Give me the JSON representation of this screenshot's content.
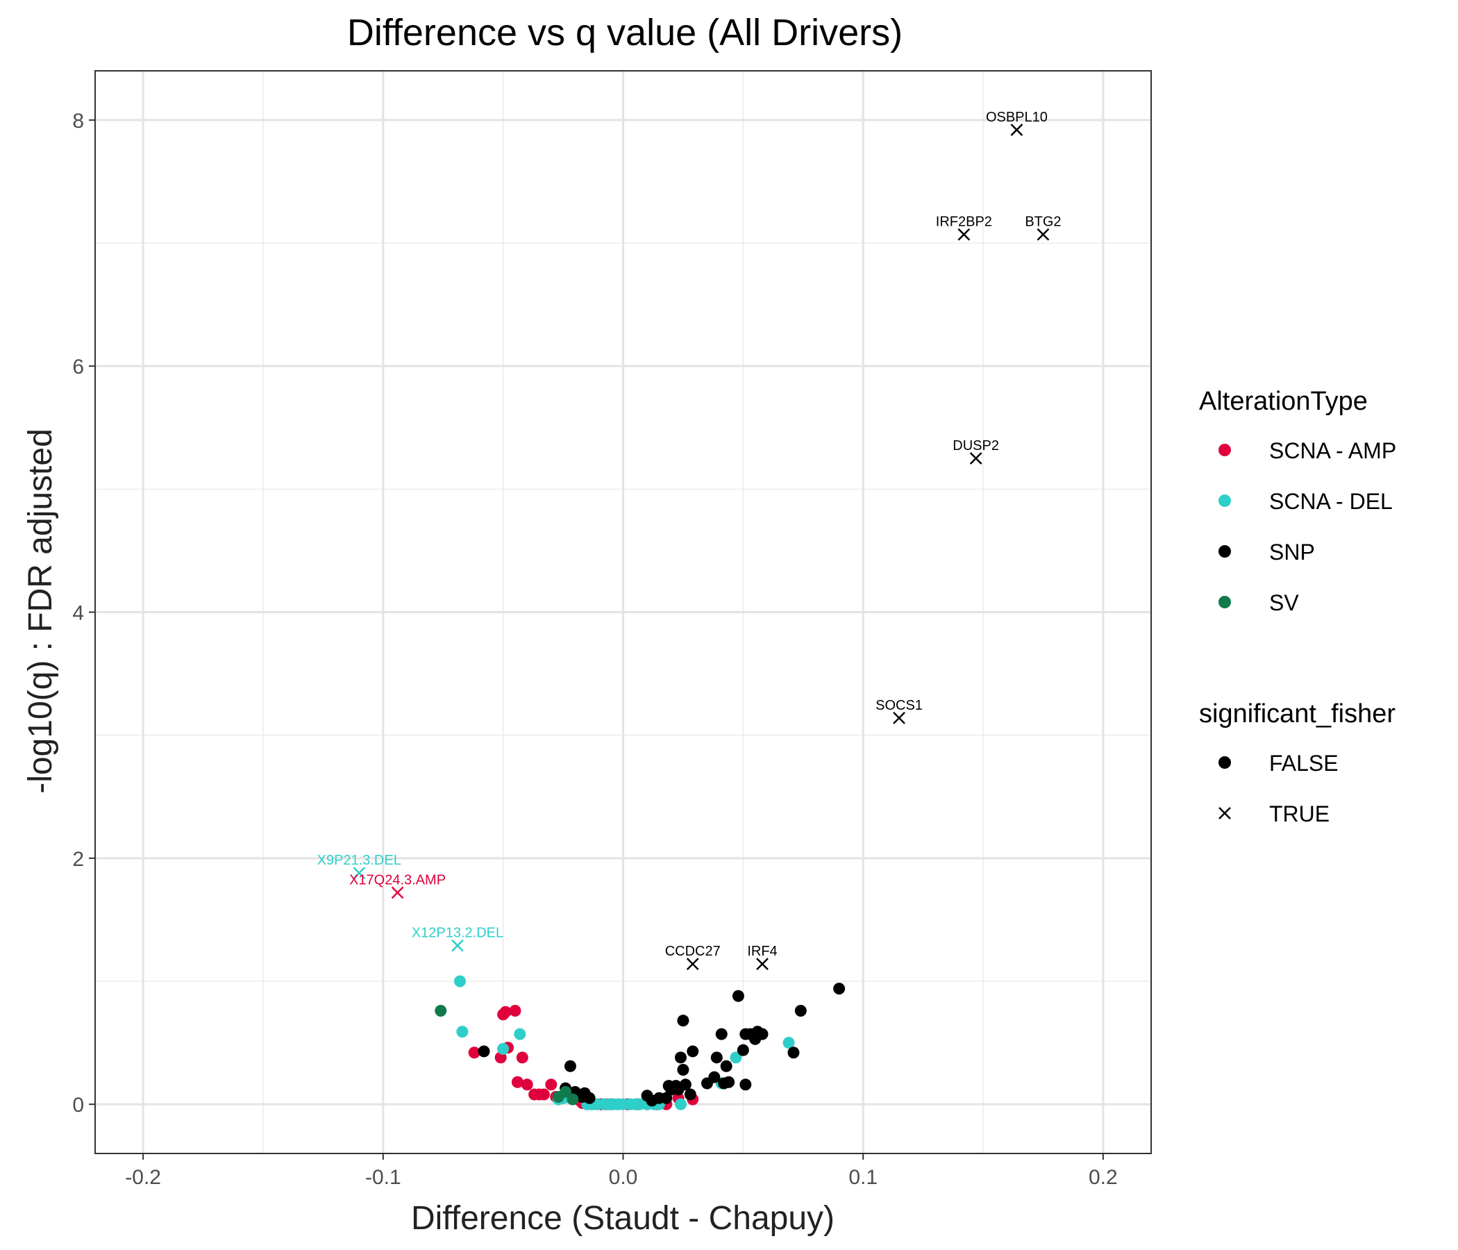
{
  "chart_data": {
    "type": "scatter",
    "title": "Difference vs q value (All Drivers)",
    "xlabel": "Difference (Staudt - Chapuy)",
    "ylabel": "-log10(q) : FDR adjusted",
    "xlim": [
      -0.22,
      0.22
    ],
    "ylim": [
      -0.4,
      8.4
    ],
    "x_ticks": [
      -0.2,
      -0.1,
      0.0,
      0.1,
      0.2
    ],
    "x_tick_labels": [
      "-0.2",
      "-0.1",
      "0.0",
      "0.1",
      "0.2"
    ],
    "y_ticks": [
      0,
      2,
      4,
      6,
      8
    ],
    "y_tick_labels": [
      "0",
      "2",
      "4",
      "6",
      "8"
    ],
    "grid": true,
    "legend_placement": "right",
    "colors": {
      "SCNA - AMP": "#e0003c",
      "SCNA - DEL": "#2ecfc9",
      "SNP": "#000000",
      "SV": "#117a4c"
    },
    "legend": {
      "color_title": "AlterationType",
      "color_entries": [
        "SCNA - AMP",
        "SCNA - DEL",
        "SNP",
        "SV"
      ],
      "shape_title": "significant_fisher",
      "shape_entries": [
        "FALSE",
        "TRUE"
      ]
    },
    "labeled_points": [
      {
        "label": "OSBPL10",
        "x": 0.164,
        "y": 7.92,
        "type": "SNP"
      },
      {
        "label": "IRF2BP2",
        "x": 0.142,
        "y": 7.07,
        "type": "SNP"
      },
      {
        "label": "BTG2",
        "x": 0.175,
        "y": 7.07,
        "type": "SNP"
      },
      {
        "label": "DUSP2",
        "x": 0.147,
        "y": 5.25,
        "type": "SNP"
      },
      {
        "label": "SOCS1",
        "x": 0.115,
        "y": 3.14,
        "type": "SNP"
      },
      {
        "label": "CCDC27",
        "x": 0.029,
        "y": 1.14,
        "type": "SNP"
      },
      {
        "label": "IRF4",
        "x": 0.058,
        "y": 1.14,
        "type": "SNP"
      },
      {
        "label": "X9P21.3.DEL",
        "x": -0.11,
        "y": 1.88,
        "type": "SCNA - DEL"
      },
      {
        "label": "X17Q24.3.AMP",
        "x": -0.094,
        "y": 1.72,
        "type": "SCNA - AMP"
      },
      {
        "label": "X12P13.2.DEL",
        "x": -0.069,
        "y": 1.29,
        "type": "SCNA - DEL"
      }
    ],
    "series": [
      {
        "name": "SCNA - AMP",
        "points": [
          [
            -0.062,
            0.42
          ],
          [
            -0.051,
            0.38
          ],
          [
            -0.05,
            0.73
          ],
          [
            -0.049,
            0.75
          ],
          [
            -0.048,
            0.46
          ],
          [
            -0.045,
            0.76
          ],
          [
            -0.044,
            0.18
          ],
          [
            -0.042,
            0.38
          ],
          [
            -0.04,
            0.16
          ],
          [
            -0.037,
            0.08
          ],
          [
            -0.035,
            0.08
          ],
          [
            -0.033,
            0.08
          ],
          [
            -0.03,
            0.16
          ],
          [
            -0.028,
            0.06
          ],
          [
            -0.025,
            0.05
          ],
          [
            -0.018,
            0.03
          ],
          [
            -0.017,
            0.01
          ],
          [
            -0.015,
            0.0
          ],
          [
            -0.013,
            0.0
          ],
          [
            -0.011,
            0.0
          ],
          [
            -0.009,
            0.0
          ],
          [
            -0.007,
            0.0
          ],
          [
            -0.005,
            0.0
          ],
          [
            -0.002,
            0.0
          ],
          [
            0.002,
            0.0
          ],
          [
            0.006,
            0.0
          ],
          [
            0.01,
            0.0
          ],
          [
            0.014,
            0.0
          ],
          [
            0.018,
            0.0
          ],
          [
            0.023,
            0.05
          ],
          [
            0.029,
            0.04
          ]
        ]
      },
      {
        "name": "SCNA - DEL",
        "points": [
          [
            -0.068,
            1.0
          ],
          [
            -0.067,
            0.59
          ],
          [
            -0.05,
            0.45
          ],
          [
            -0.043,
            0.57
          ],
          [
            -0.027,
            0.04
          ],
          [
            -0.025,
            0.05
          ],
          [
            -0.022,
            0.05
          ],
          [
            -0.021,
            0.07
          ],
          [
            -0.015,
            0.0
          ],
          [
            -0.013,
            0.0
          ],
          [
            -0.011,
            0.0
          ],
          [
            -0.008,
            0.0
          ],
          [
            -0.006,
            0.0
          ],
          [
            -0.004,
            0.0
          ],
          [
            -0.002,
            0.0
          ],
          [
            0.0,
            0.0
          ],
          [
            0.003,
            0.0
          ],
          [
            0.005,
            0.0
          ],
          [
            0.007,
            0.0
          ],
          [
            0.01,
            0.0
          ],
          [
            0.013,
            0.0
          ],
          [
            0.015,
            0.0
          ],
          [
            0.024,
            0.0
          ],
          [
            0.041,
            0.17
          ],
          [
            0.047,
            0.38
          ],
          [
            0.069,
            0.5
          ]
        ]
      },
      {
        "name": "SNP",
        "points": [
          [
            -0.058,
            0.43
          ],
          [
            -0.022,
            0.31
          ],
          [
            -0.024,
            0.13
          ],
          [
            -0.02,
            0.1
          ],
          [
            -0.017,
            0.06
          ],
          [
            -0.016,
            0.09
          ],
          [
            -0.014,
            0.05
          ],
          [
            0.01,
            0.07
          ],
          [
            0.012,
            0.03
          ],
          [
            0.015,
            0.05
          ],
          [
            0.018,
            0.05
          ],
          [
            0.019,
            0.15
          ],
          [
            0.02,
            0.12
          ],
          [
            0.022,
            0.15
          ],
          [
            0.023,
            0.12
          ],
          [
            0.024,
            0.38
          ],
          [
            0.025,
            0.68
          ],
          [
            0.025,
            0.28
          ],
          [
            0.026,
            0.16
          ],
          [
            0.028,
            0.08
          ],
          [
            0.029,
            0.43
          ],
          [
            0.035,
            0.17
          ],
          [
            0.038,
            0.22
          ],
          [
            0.039,
            0.38
          ],
          [
            0.041,
            0.57
          ],
          [
            0.042,
            0.17
          ],
          [
            0.043,
            0.31
          ],
          [
            0.044,
            0.18
          ],
          [
            0.048,
            0.88
          ],
          [
            0.05,
            0.44
          ],
          [
            0.051,
            0.57
          ],
          [
            0.051,
            0.16
          ],
          [
            0.053,
            0.57
          ],
          [
            0.055,
            0.53
          ],
          [
            0.056,
            0.59
          ],
          [
            0.058,
            0.57
          ],
          [
            0.071,
            0.42
          ],
          [
            0.074,
            0.76
          ],
          [
            0.09,
            0.94
          ]
        ]
      },
      {
        "name": "SV",
        "points": [
          [
            -0.076,
            0.76
          ],
          [
            -0.027,
            0.06
          ],
          [
            -0.024,
            0.1
          ],
          [
            -0.021,
            0.04
          ]
        ]
      }
    ]
  }
}
